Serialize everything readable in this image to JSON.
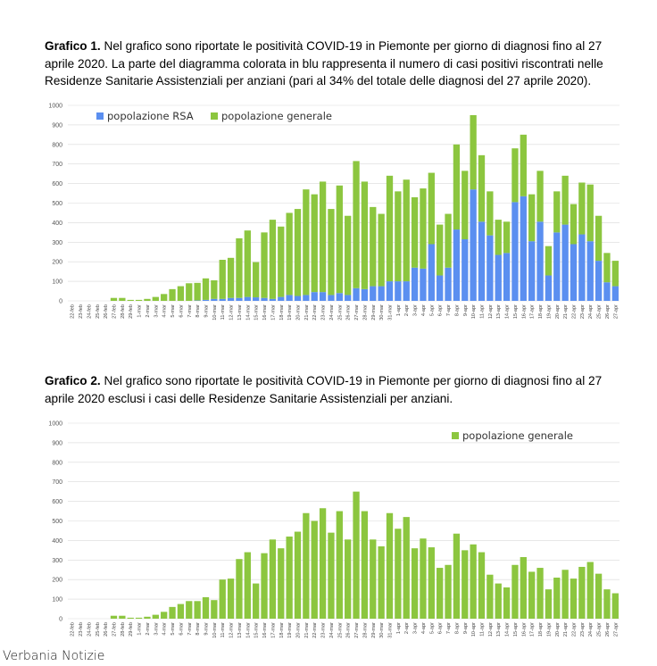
{
  "captions": {
    "c1_label": "Grafico 1.",
    "c1_text": " Nel grafico sono riportate le positività COVID-19 in Piemonte per giorno di diagnosi fino al 27 aprile 2020. La parte del diagramma colorata in blu rappresenta il numero di casi positivi riscontrati nelle Residenze Sanitarie Assistenziali per anziani (pari al 34% del totale delle diagnosi del 27 aprile 2020).",
    "c2_label": "Grafico 2.",
    "c2_text": " Nel grafico sono riportate le positività COVID-19 in Piemonte per giorno di diagnosi fino al 27 aprile 2020 esclusi i casi delle Residenze Sanitarie Assistenziali per anziani."
  },
  "source": "Verbania Notizie",
  "colors": {
    "rsa": "#5b8ff0",
    "general": "#8cc63f",
    "grid": "#d9d9d9"
  },
  "chart_data": [
    {
      "type": "bar",
      "stacked": true,
      "ylim": [
        0,
        1000
      ],
      "yticks": [
        0,
        100,
        200,
        300,
        400,
        500,
        600,
        700,
        800,
        900,
        1000
      ],
      "legend_position": "top-left",
      "categories": [
        "22-feb",
        "23-feb",
        "24-feb",
        "25-feb",
        "26-feb",
        "27-feb",
        "28-feb",
        "29-feb",
        "1-mar",
        "2-mar",
        "3-mar",
        "4-mar",
        "5-mar",
        "6-mar",
        "7-mar",
        "8-mar",
        "9-mar",
        "10-mar",
        "11-mar",
        "12-mar",
        "13-mar",
        "14-mar",
        "15-mar",
        "16-mar",
        "17-mar",
        "18-mar",
        "19-mar",
        "20-mar",
        "21-mar",
        "22-mar",
        "23-mar",
        "24-mar",
        "25-mar",
        "26-mar",
        "27-mar",
        "28-mar",
        "29-mar",
        "30-mar",
        "31-mar",
        "1-apr",
        "2-apr",
        "3-apr",
        "4-apr",
        "5-apr",
        "6-apr",
        "7-apr",
        "8-apr",
        "9-apr",
        "10-apr",
        "11-apr",
        "12-apr",
        "13-apr",
        "14-apr",
        "15-apr",
        "16-apr",
        "17-apr",
        "18-apr",
        "19-apr",
        "20-apr",
        "21-apr",
        "22-apr",
        "23-apr",
        "24-apr",
        "25-apr",
        "26-apr",
        "27-apr"
      ],
      "series": [
        {
          "name": "popolazione RSA",
          "values": [
            0,
            0,
            0,
            0,
            0,
            0,
            0,
            0,
            0,
            0,
            0,
            0,
            0,
            0,
            0,
            2,
            5,
            10,
            10,
            15,
            15,
            20,
            18,
            15,
            10,
            20,
            30,
            25,
            30,
            45,
            45,
            30,
            40,
            30,
            65,
            60,
            75,
            75,
            100,
            100,
            100,
            170,
            165,
            290,
            130,
            170,
            365,
            315,
            570,
            405,
            335,
            235,
            245,
            505,
            535,
            305,
            405,
            130,
            350,
            390,
            290,
            340,
            305,
            205,
            95,
            75
          ]
        },
        {
          "name": "popolazione generale",
          "values": [
            0,
            0,
            0,
            0,
            0,
            15,
            15,
            5,
            5,
            10,
            20,
            35,
            60,
            75,
            90,
            90,
            110,
            95,
            200,
            205,
            305,
            340,
            180,
            335,
            405,
            360,
            420,
            445,
            540,
            500,
            565,
            440,
            550,
            405,
            650,
            550,
            405,
            370,
            540,
            460,
            520,
            360,
            410,
            365,
            260,
            275,
            435,
            350,
            380,
            340,
            225,
            180,
            160,
            275,
            315,
            240,
            260,
            150,
            210,
            250,
            205,
            265,
            290,
            230,
            150,
            130
          ]
        }
      ]
    },
    {
      "type": "bar",
      "ylim": [
        0,
        1000
      ],
      "yticks": [
        0,
        100,
        200,
        300,
        400,
        500,
        600,
        700,
        800,
        900,
        1000
      ],
      "legend_position": "top-right",
      "categories": [
        "22-feb",
        "23-feb",
        "24-feb",
        "25-feb",
        "26-feb",
        "27-feb",
        "28-feb",
        "29-feb",
        "1-mar",
        "2-mar",
        "3-mar",
        "4-mar",
        "5-mar",
        "6-mar",
        "7-mar",
        "8-mar",
        "9-mar",
        "10-mar",
        "11-mar",
        "12-mar",
        "13-mar",
        "14-mar",
        "15-mar",
        "16-mar",
        "17-mar",
        "18-mar",
        "19-mar",
        "20-mar",
        "21-mar",
        "22-mar",
        "23-mar",
        "24-mar",
        "25-mar",
        "26-mar",
        "27-mar",
        "28-mar",
        "29-mar",
        "30-mar",
        "31-mar",
        "1-apr",
        "2-apr",
        "3-apr",
        "4-apr",
        "5-apr",
        "6-apr",
        "7-apr",
        "8-apr",
        "9-apr",
        "10-apr",
        "11-apr",
        "12-apr",
        "13-apr",
        "14-apr",
        "15-apr",
        "16-apr",
        "17-apr",
        "18-apr",
        "19-apr",
        "20-apr",
        "21-apr",
        "22-apr",
        "23-apr",
        "24-apr",
        "25-apr",
        "26-apr",
        "27-apr"
      ],
      "series": [
        {
          "name": "popolazione generale",
          "values": [
            0,
            0,
            0,
            0,
            0,
            15,
            15,
            5,
            5,
            10,
            20,
            35,
            60,
            75,
            90,
            90,
            110,
            95,
            200,
            205,
            305,
            340,
            180,
            335,
            405,
            360,
            420,
            445,
            540,
            500,
            565,
            440,
            550,
            405,
            650,
            550,
            405,
            370,
            540,
            460,
            520,
            360,
            410,
            365,
            260,
            275,
            435,
            350,
            380,
            340,
            225,
            180,
            160,
            275,
            315,
            240,
            260,
            150,
            210,
            250,
            205,
            265,
            290,
            230,
            150,
            130
          ]
        }
      ]
    }
  ]
}
